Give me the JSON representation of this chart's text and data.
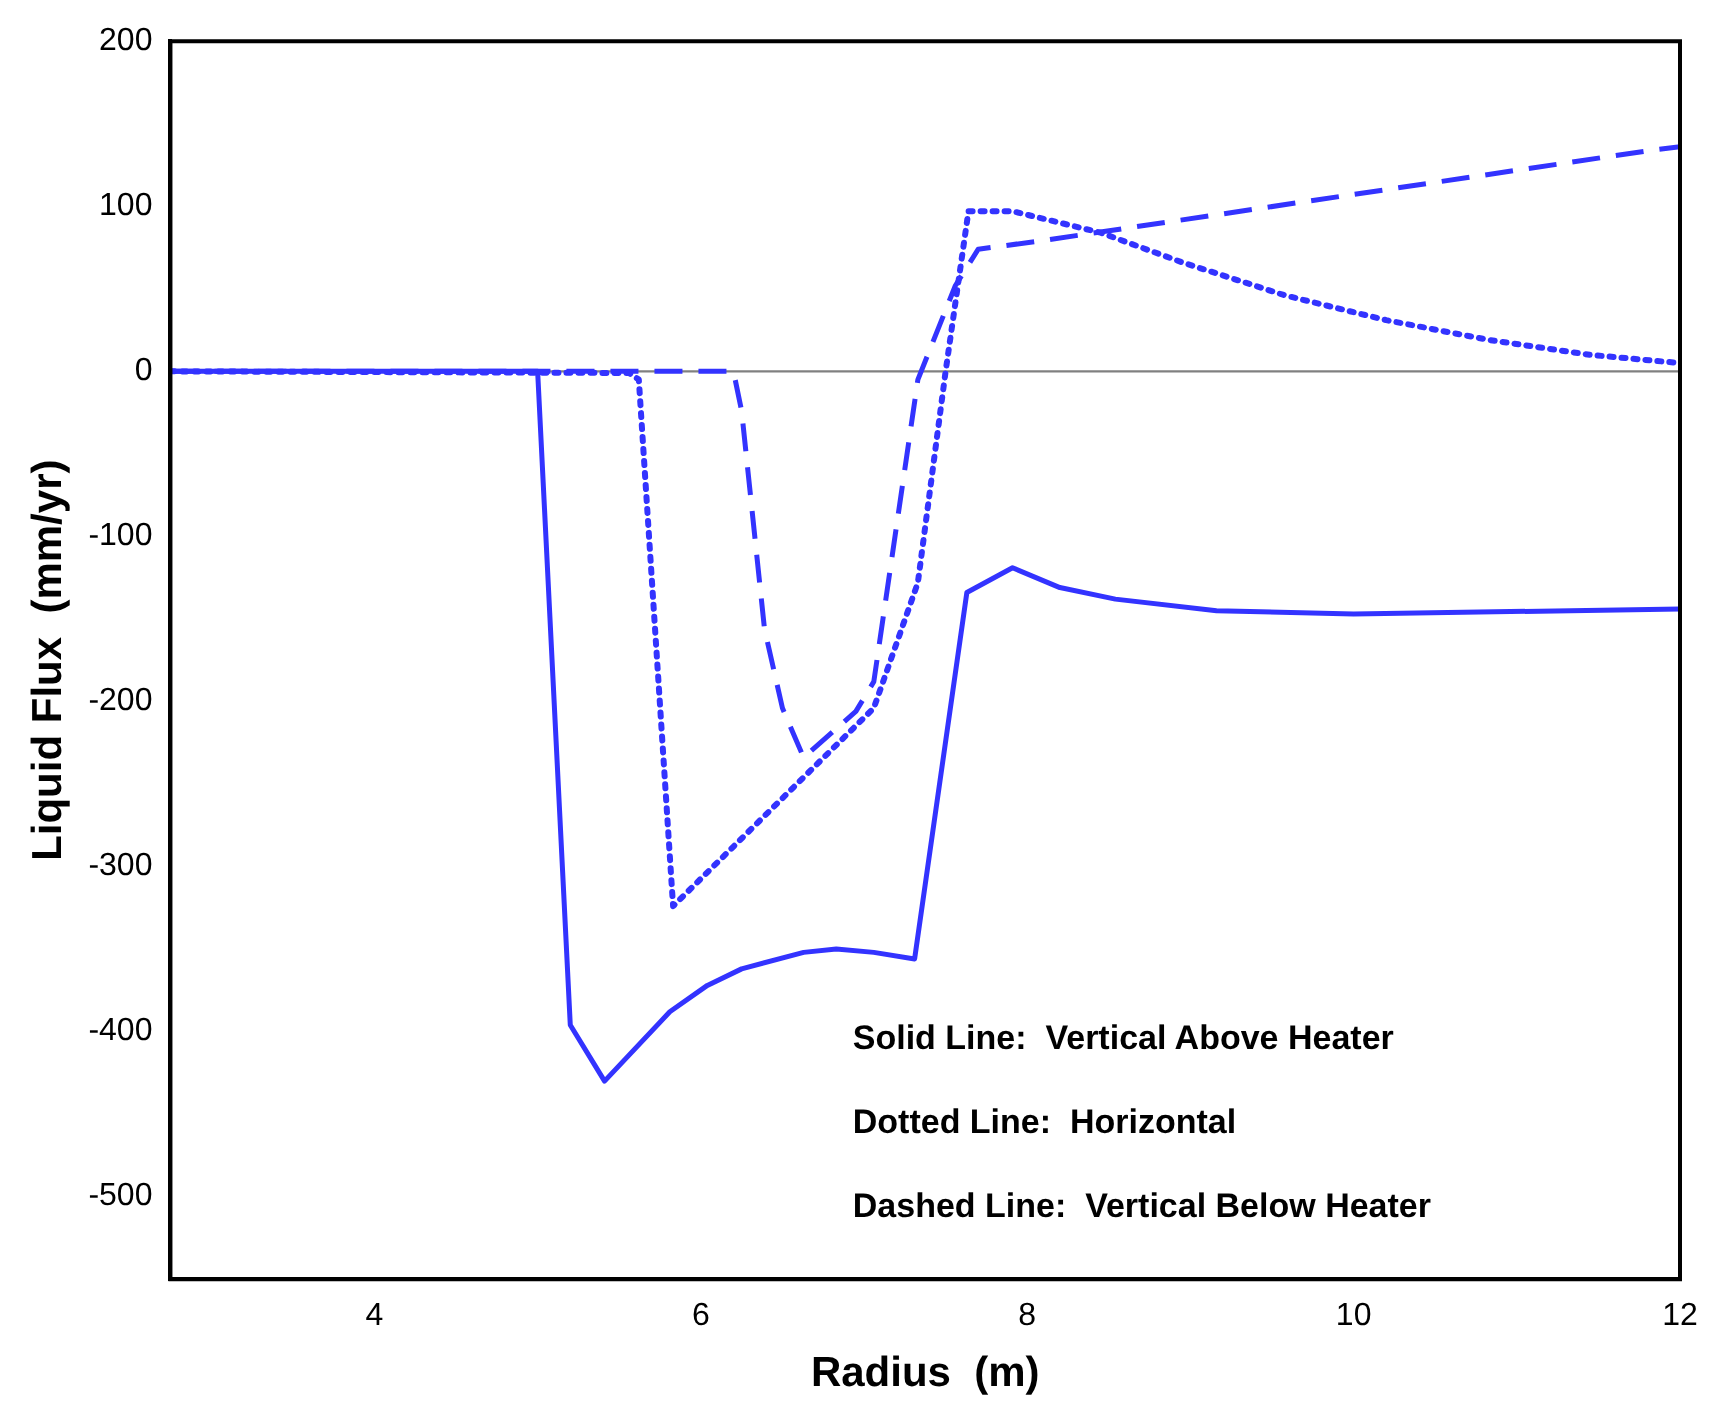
{
  "chart_data": {
    "type": "line",
    "xlabel": "Radius  (m)",
    "ylabel": "Liquid Flux  (mm/yr)",
    "xlim": [
      2.75,
      12
    ],
    "xticks": [
      4,
      6,
      8,
      10,
      12
    ],
    "ylim": [
      -550,
      200
    ],
    "yticks": [
      -500,
      -400,
      -300,
      -200,
      -100,
      0,
      100,
      200
    ],
    "grid": false,
    "legend": false,
    "marker": "none",
    "ref_lines": [
      {
        "axis": "y",
        "value": 0,
        "color": "#808080"
      }
    ],
    "annotations": [
      "Solid Line:  Vertical Above Heater",
      "Dotted Line:  Horizontal",
      "Dashed Line:  Vertical Below Heater"
    ],
    "series": [
      {
        "color": "#3333ff",
        "line_style": "solid",
        "x": [
          2.75,
          5.0,
          5.2,
          5.41,
          5.81,
          6.04,
          6.25,
          6.63,
          6.83,
          7.06,
          7.31,
          7.63,
          7.91,
          8.2,
          8.54,
          9.16,
          10.0,
          12
        ],
        "values": [
          0,
          0,
          -396,
          -430,
          -388,
          -372,
          -362,
          -352,
          -350,
          -352,
          -356,
          -134,
          -119,
          -131,
          -138,
          -145,
          -147,
          -144
        ]
      },
      {
        "color": "#3333ff",
        "line_style": "dotted",
        "x": [
          2.75,
          5.56,
          5.62,
          5.83,
          7.06,
          7.33,
          7.5,
          7.64,
          7.91,
          8.45,
          8.95,
          9.58,
          10.2,
          10.83,
          11.45,
          12
        ],
        "values": [
          0,
          -1,
          -5,
          -324,
          -204,
          -128,
          0,
          97,
          97,
          84,
          66,
          46,
          31,
          19,
          10,
          5
        ]
      },
      {
        "color": "#3333ff",
        "line_style": "dashed",
        "x": [
          2.75,
          6.2,
          6.25,
          6.39,
          6.5,
          6.63,
          6.95,
          7.06,
          7.33,
          7.56,
          7.7,
          8.08,
          11.83,
          12
        ],
        "values": [
          0,
          0,
          -24,
          -156,
          -204,
          -234,
          -206,
          -188,
          -5,
          52,
          74,
          79,
          134,
          136
        ]
      }
    ]
  }
}
